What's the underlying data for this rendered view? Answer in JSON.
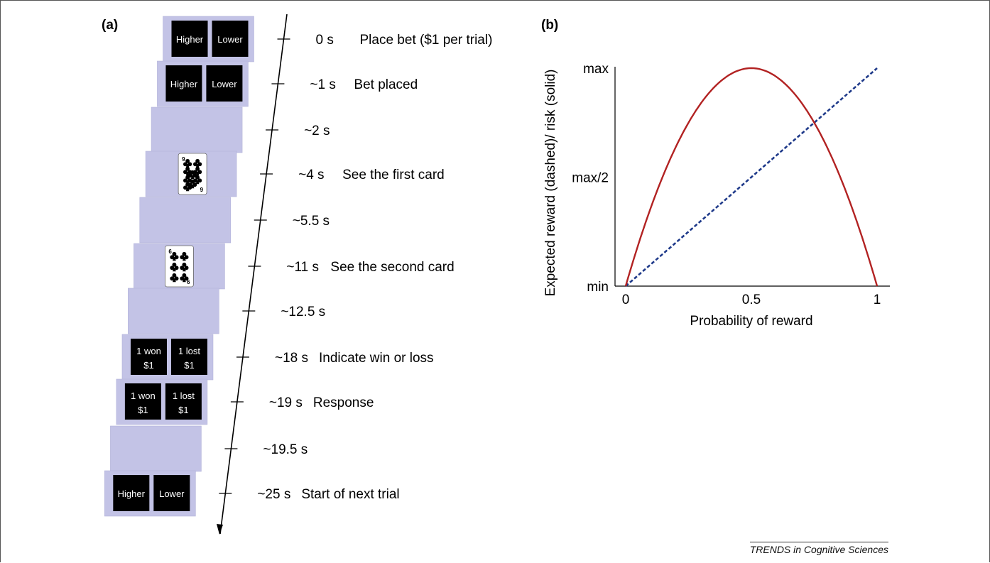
{
  "panel_a": {
    "label": "(a)",
    "steps": [
      {
        "time": "0 s",
        "event": "Place bet ($1 per trial)",
        "screen": "bet"
      },
      {
        "time": "~1 s",
        "event": "Bet placed",
        "screen": "bet"
      },
      {
        "time": "~2 s",
        "event": "",
        "screen": "blank"
      },
      {
        "time": "~4 s",
        "event": "See the first card",
        "screen": "card1"
      },
      {
        "time": "~5.5 s",
        "event": "",
        "screen": "blank"
      },
      {
        "time": "~11 s",
        "event": "See the second card",
        "screen": "card2"
      },
      {
        "time": "~12.5 s",
        "event": "",
        "screen": "blank"
      },
      {
        "time": "~18 s",
        "event": "Indicate win or loss",
        "screen": "result"
      },
      {
        "time": "~19 s",
        "event": "Response",
        "screen": "result"
      },
      {
        "time": "~19.5 s",
        "event": "",
        "screen": "blank"
      },
      {
        "time": "~25 s",
        "event": "Start of next trial",
        "screen": "bet"
      }
    ],
    "button_labels": {
      "higher": "Higher",
      "lower": "Lower",
      "won_line1": "1 won",
      "won_line2": "$1",
      "lost_line1": "1 lost",
      "lost_line2": "$1"
    },
    "cards": {
      "first": {
        "rank": "9",
        "suit": "clubs"
      },
      "second": {
        "rank": "6",
        "suit": "clubs"
      }
    },
    "colors": {
      "screen": "#c3c3e6",
      "button": "#000000",
      "axis": "#000000"
    }
  },
  "chart_data": {
    "label": "(b)",
    "type": "line",
    "xlabel": "Probability of reward",
    "ylabel": "Expected reward (dashed)/ risk (solid)",
    "xlim": [
      0,
      1
    ],
    "x_ticks": [
      "0",
      "0.5",
      "1"
    ],
    "y_ticks": [
      "min",
      "max/2",
      "max"
    ],
    "series": [
      {
        "style": "dashed",
        "color": "#1f3a8a",
        "x": [
          0,
          0.25,
          0.5,
          0.75,
          1
        ],
        "y": [
          0,
          0.25,
          0.5,
          0.75,
          1
        ]
      },
      {
        "style": "solid",
        "color": "#b22222",
        "x": [
          0,
          0.1,
          0.2,
          0.3,
          0.4,
          0.5,
          0.6,
          0.7,
          0.8,
          0.9,
          1
        ],
        "y": [
          0,
          0.36,
          0.64,
          0.84,
          0.96,
          1,
          0.96,
          0.84,
          0.64,
          0.36,
          0
        ]
      }
    ],
    "ylim": [
      0,
      1
    ]
  },
  "credit": "TRENDS in Cognitive Sciences"
}
